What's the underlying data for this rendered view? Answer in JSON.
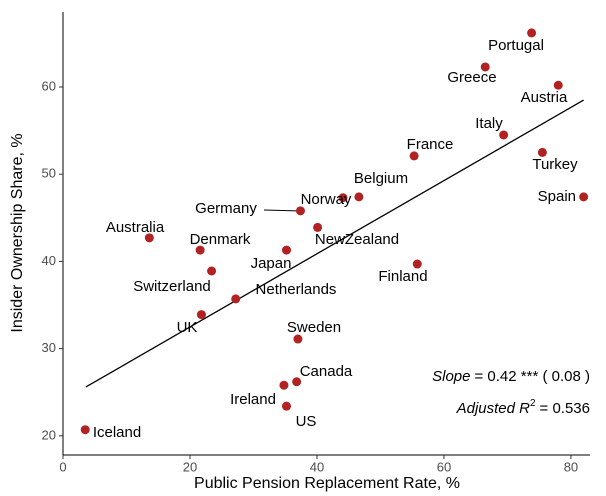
{
  "chart_data": {
    "type": "scatter",
    "x_label": "Public Pension Replacement Rate, %",
    "y_label": "Insider Ownership Share, %",
    "point_color": "#b22222",
    "names": [
      "Portugal",
      "Greece",
      "Austria",
      "Italy",
      "France",
      "Turkey",
      "Spain",
      "Belgium",
      "Norway",
      "Germany",
      "NewZealand",
      "Finland",
      "Australia",
      "Denmark",
      "Japan",
      "Switzerland",
      "Netherlands",
      "UK",
      "Sweden",
      "Canada",
      "Ireland",
      "US",
      "Iceland"
    ],
    "x": [
      73.8,
      66.5,
      78.0,
      69.4,
      55.3,
      75.5,
      82.0,
      46.6,
      44.1,
      37.4,
      40.1,
      55.8,
      13.6,
      21.6,
      35.2,
      23.4,
      27.2,
      21.8,
      37.0,
      36.8,
      34.8,
      35.2,
      3.5
    ],
    "y": [
      66.2,
      62.3,
      60.2,
      54.5,
      52.1,
      52.5,
      47.4,
      47.4,
      47.3,
      45.8,
      43.9,
      39.7,
      42.7,
      41.3,
      41.3,
      38.9,
      35.7,
      33.9,
      31.1,
      26.2,
      25.8,
      23.4,
      20.7
    ],
    "fit_line": {
      "x": [
        3.6,
        82.0
      ],
      "y": [
        25.6,
        58.5
      ]
    },
    "annotation": {
      "slope_label": "Slope",
      "slope_text": "= 0.42 *** ( 0.08 )",
      "r2_label": "Adjusted R",
      "r2_sup": "2",
      "r2_text": "= 0.536"
    },
    "xlim": [
      0,
      83
    ],
    "ylim": [
      17.8,
      68.6
    ],
    "xticks": [
      0,
      20,
      40,
      60,
      80
    ],
    "yticks": [
      20,
      30,
      40,
      50,
      60
    ]
  }
}
